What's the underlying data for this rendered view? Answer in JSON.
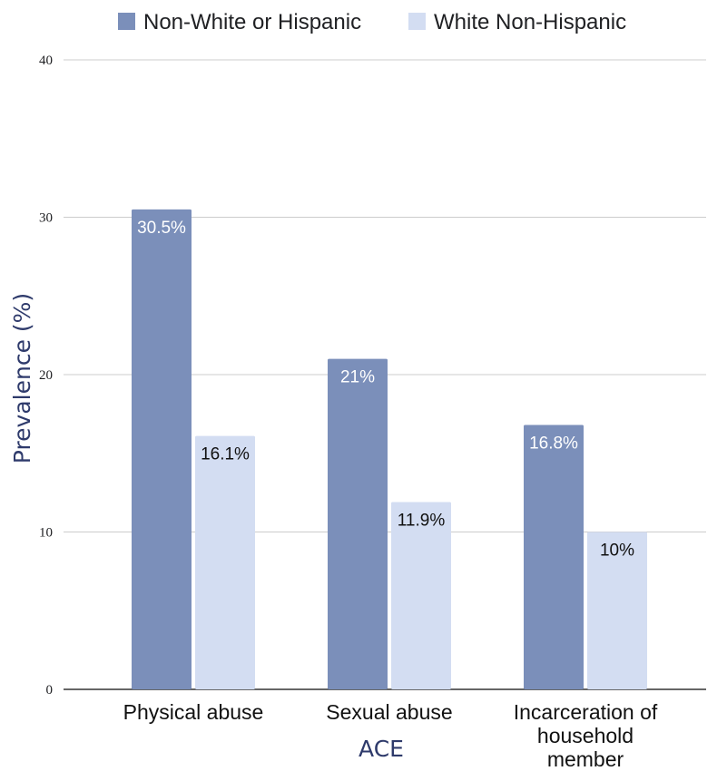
{
  "chart_data": {
    "type": "bar",
    "categories": [
      "Physical abuse",
      "Sexual abuse",
      "Incarceration of household member"
    ],
    "category_lines": [
      [
        "Physical abuse"
      ],
      [
        "Sexual abuse"
      ],
      [
        "Incarceration of",
        "household",
        "member"
      ]
    ],
    "series": [
      {
        "name": "Non-White or Hispanic",
        "values": [
          30.5,
          21,
          16.8
        ],
        "labels": [
          "30.5%",
          "21%",
          "16.8%"
        ],
        "color": "#7b8fba"
      },
      {
        "name": "White Non-Hispanic",
        "values": [
          16.1,
          11.9,
          10
        ],
        "labels": [
          "16.1%",
          "11.9%",
          "10%"
        ],
        "color": "#d3ddf2"
      }
    ],
    "xlabel": "ACE",
    "ylabel": "Prevalence (%)",
    "ylim": [
      0,
      40
    ],
    "yticks": [
      "0",
      "10",
      "20",
      "30",
      "40"
    ],
    "grid": true,
    "legend_position": "top"
  }
}
